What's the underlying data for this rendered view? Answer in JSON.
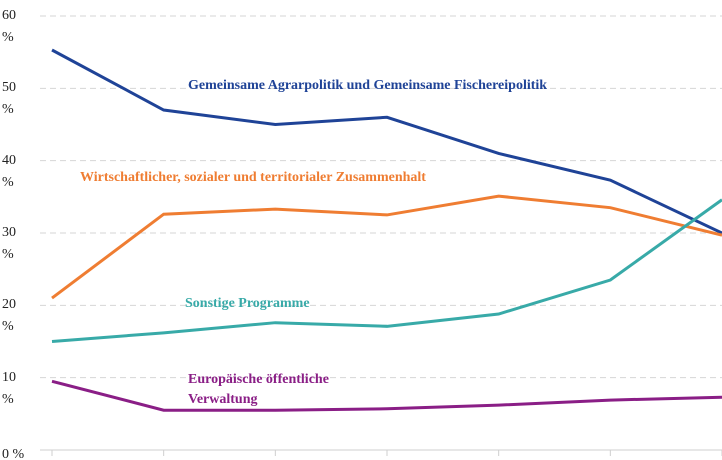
{
  "chart_data": {
    "type": "line",
    "categories": [
      null,
      null,
      null,
      null,
      null,
      null,
      null
    ],
    "series": [
      {
        "name": "Gemeinsame Agrarpolitik und Gemeinsame Fischereipolitik",
        "color": "#1f4397",
        "values": [
          55.3,
          47,
          45,
          46,
          41,
          37.3,
          30
        ]
      },
      {
        "name": "Wirtschaftlicher, sozialer und territorialer Zusammenhalt",
        "color": "#ef7d32",
        "values": [
          21,
          32.6,
          33.3,
          32.5,
          35.1,
          33.5,
          29.7
        ]
      },
      {
        "name": "Sonstige Programme",
        "color": "#38aaa8",
        "values": [
          15,
          16.2,
          17.6,
          17.1,
          18.8,
          23.5,
          34.6
        ]
      },
      {
        "name": "Europäische öffentliche Verwaltung",
        "color": "#8a1e86",
        "values": [
          9.5,
          5.5,
          5.5,
          5.7,
          6.2,
          6.9,
          7.3
        ]
      }
    ],
    "ylim": [
      0,
      60
    ],
    "yticks": [
      {
        "value": 0,
        "label": "0 %"
      },
      {
        "value": 10,
        "label": "10 %"
      },
      {
        "value": 20,
        "label": "20 %"
      },
      {
        "value": 30,
        "label": "30 %"
      },
      {
        "value": 40,
        "label": "40 %"
      },
      {
        "value": 50,
        "label": "50 %"
      },
      {
        "value": 60,
        "label": "60 %"
      }
    ],
    "grid": true
  }
}
